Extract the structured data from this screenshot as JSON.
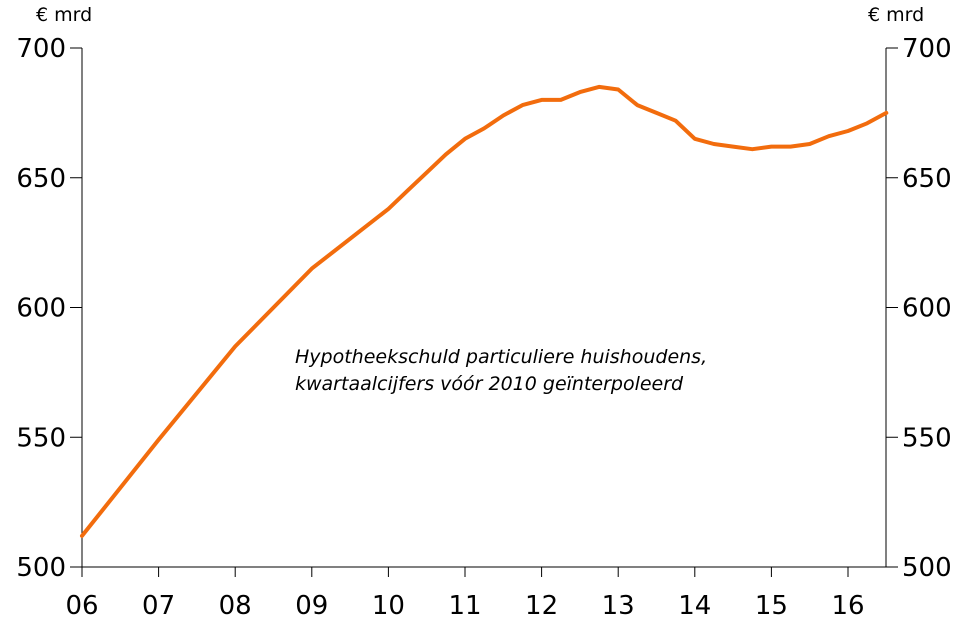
{
  "chart_data": {
    "type": "line",
    "left_unit": "€ mrd",
    "right_unit": "€ mrd",
    "ylim": [
      500,
      700
    ],
    "y_ticks": [
      500,
      550,
      600,
      650,
      700
    ],
    "y_tick_labels": [
      "500",
      "550",
      "600",
      "650",
      "700"
    ],
    "xlim": [
      6,
      16.5
    ],
    "x_ticks": [
      6,
      7,
      8,
      9,
      10,
      11,
      12,
      13,
      14,
      15,
      16
    ],
    "x_tick_labels": [
      "06",
      "07",
      "08",
      "09",
      "10",
      "11",
      "12",
      "13",
      "14",
      "15",
      "16"
    ],
    "annotation_lines": [
      "Hypotheekschuld particuliere huishoudens,",
      "kwartaalcijfers vóór 2010 geïnterpoleerd"
    ],
    "grid": false,
    "series": [
      {
        "color": "#f26c0d",
        "x": [
          6.0,
          7.0,
          8.0,
          9.0,
          10.0,
          10.25,
          10.5,
          10.75,
          11.0,
          11.25,
          11.5,
          11.75,
          12.0,
          12.25,
          12.5,
          12.75,
          13.0,
          13.25,
          13.5,
          13.75,
          14.0,
          14.25,
          14.5,
          14.75,
          15.0,
          15.25,
          15.5,
          15.75,
          16.0,
          16.25,
          16.5
        ],
        "y": [
          512,
          549,
          585,
          615,
          638,
          645,
          652,
          659,
          665,
          669,
          674,
          678,
          680,
          680,
          683,
          685,
          684,
          678,
          675,
          672,
          665,
          663,
          662,
          661,
          662,
          662,
          663,
          666,
          668,
          671,
          675
        ]
      }
    ]
  }
}
